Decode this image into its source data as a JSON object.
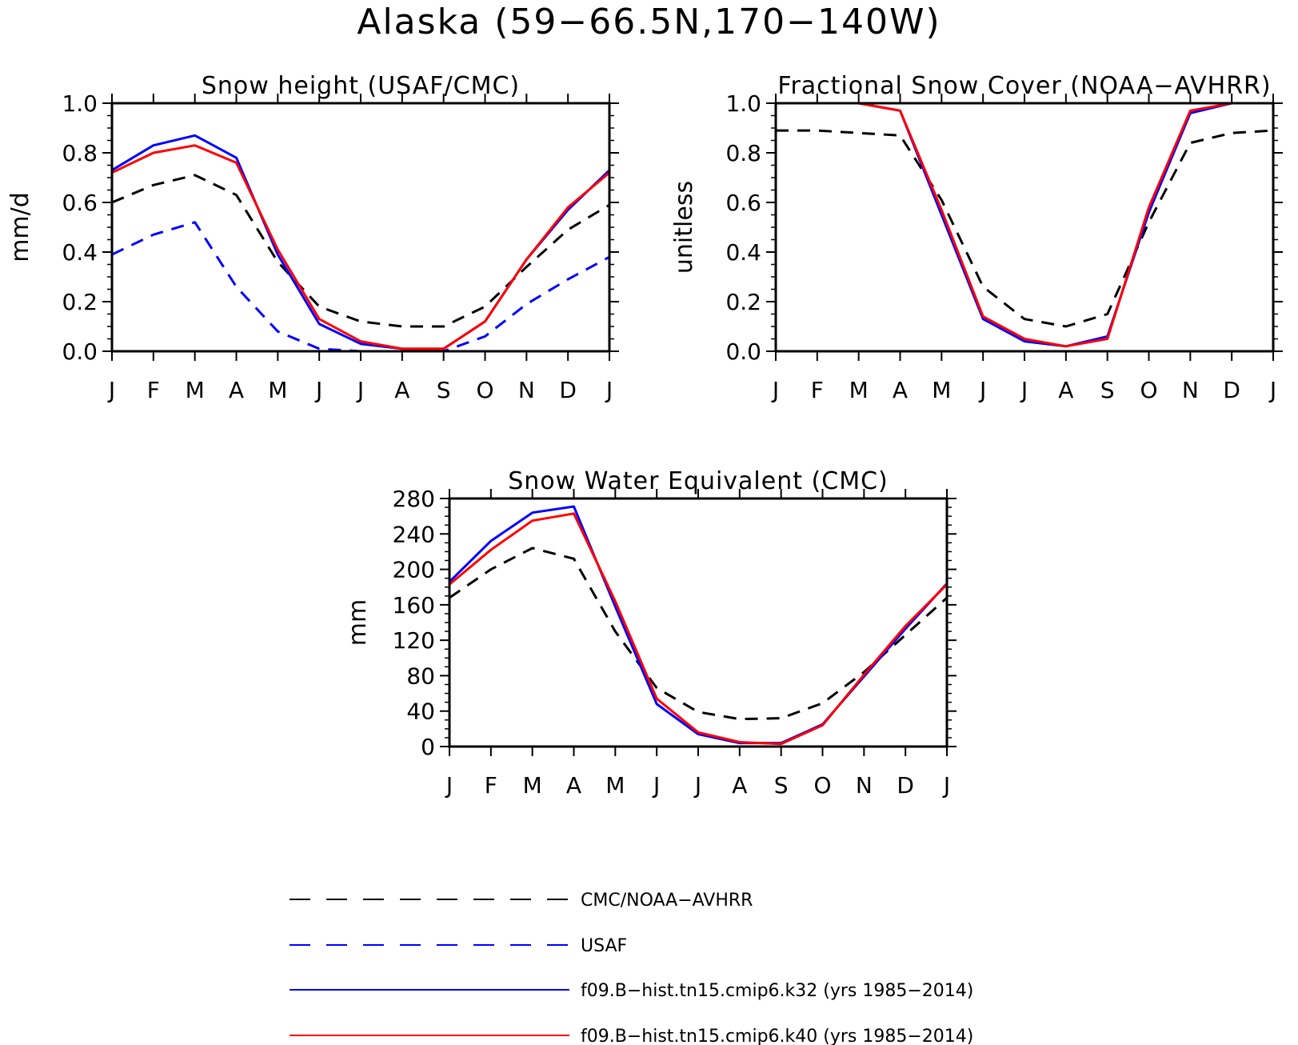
{
  "title": "Alaska (59−66.5N,170−140W)",
  "colors": {
    "obs_primary": "#000000",
    "obs_secondary": "#0000ff",
    "k32": "#0000ff",
    "k40": "#ff0000"
  },
  "legend": {
    "entries": [
      {
        "label": "CMC/NOAA−AVHRR",
        "color": "#000000",
        "style": "dashed"
      },
      {
        "label": "USAF",
        "color": "#0000ff",
        "style": "dashed"
      },
      {
        "label": "f09.B−hist.tn15.cmip6.k32 (yrs 1985−2014)",
        "color": "#0000ff",
        "style": "solid"
      },
      {
        "label": "f09.B−hist.tn15.cmip6.k40 (yrs 1985−2014)",
        "color": "#ff0000",
        "style": "solid"
      }
    ]
  },
  "chart_data": [
    {
      "type": "line",
      "title": "Snow height (USAF/CMC)",
      "ylabel": "mm/d",
      "ylim": [
        0,
        1.0
      ],
      "yticks": [
        "0.0",
        "0.2",
        "0.4",
        "0.6",
        "0.8",
        "1.0"
      ],
      "categories": [
        "J",
        "F",
        "M",
        "A",
        "M",
        "J",
        "J",
        "A",
        "S",
        "O",
        "N",
        "D",
        "J"
      ],
      "series": [
        {
          "name": "CMC/NOAA−AVHRR",
          "style": "dashed",
          "color": "#000000",
          "values": [
            0.6,
            0.67,
            0.71,
            0.63,
            0.36,
            0.18,
            0.12,
            0.1,
            0.1,
            0.18,
            0.34,
            0.49,
            0.59
          ]
        },
        {
          "name": "USAF",
          "style": "dashed",
          "color": "#0000ff",
          "values": [
            0.39,
            0.47,
            0.52,
            0.26,
            0.08,
            0.01,
            0.0,
            0.0,
            0.0,
            0.06,
            0.19,
            0.29,
            0.38
          ]
        },
        {
          "name": "f09.B−hist.tn15.cmip6.k32 (yrs 1985−2014)",
          "style": "solid",
          "color": "#0000ff",
          "values": [
            0.73,
            0.83,
            0.87,
            0.78,
            0.39,
            0.11,
            0.03,
            0.01,
            0.01,
            0.12,
            0.37,
            0.57,
            0.73
          ]
        },
        {
          "name": "f09.B−hist.tn15.cmip6.k40 (yrs 1985−2014)",
          "style": "solid",
          "color": "#ff0000",
          "values": [
            0.72,
            0.8,
            0.83,
            0.76,
            0.41,
            0.13,
            0.04,
            0.01,
            0.01,
            0.12,
            0.37,
            0.58,
            0.72
          ]
        }
      ]
    },
    {
      "type": "line",
      "title": "Fractional Snow Cover (NOAA−AVHRR)",
      "ylabel": "unitless",
      "ylim": [
        0,
        1.0
      ],
      "yticks": [
        "0.0",
        "0.2",
        "0.4",
        "0.6",
        "0.8",
        "1.0"
      ],
      "categories": [
        "J",
        "F",
        "M",
        "A",
        "M",
        "J",
        "J",
        "A",
        "S",
        "O",
        "N",
        "D",
        "J"
      ],
      "series": [
        {
          "name": "CMC/NOAA−AVHRR",
          "style": "dashed",
          "color": "#000000",
          "values": [
            0.89,
            0.89,
            0.88,
            0.87,
            0.61,
            0.26,
            0.13,
            0.1,
            0.15,
            0.52,
            0.84,
            0.88,
            0.89
          ]
        },
        {
          "name": "f09.B−hist.tn15.cmip6.k32 (yrs 1985−2014)",
          "style": "solid",
          "color": "#0000ff",
          "values": [
            1.0,
            1.0,
            1.0,
            0.97,
            0.55,
            0.13,
            0.04,
            0.02,
            0.06,
            0.56,
            0.96,
            1.0,
            1.0
          ]
        },
        {
          "name": "f09.B−hist.tn15.cmip6.k40 (yrs 1985−2014)",
          "style": "solid",
          "color": "#ff0000",
          "values": [
            1.0,
            1.0,
            1.0,
            0.97,
            0.57,
            0.14,
            0.05,
            0.02,
            0.05,
            0.58,
            0.97,
            1.0,
            1.0
          ]
        }
      ]
    },
    {
      "type": "line",
      "title": "Snow Water Equivalent (CMC)",
      "ylabel": "mm",
      "ylim": [
        0,
        280
      ],
      "yticks": [
        "0",
        "40",
        "80",
        "120",
        "160",
        "200",
        "240",
        "280"
      ],
      "categories": [
        "J",
        "F",
        "M",
        "A",
        "M",
        "J",
        "J",
        "A",
        "S",
        "O",
        "N",
        "D",
        "J"
      ],
      "series": [
        {
          "name": "CMC/NOAA−AVHRR",
          "style": "dashed",
          "color": "#000000",
          "values": [
            168,
            200,
            224,
            212,
            130,
            66,
            39,
            31,
            32,
            49,
            84,
            126,
            168
          ]
        },
        {
          "name": "f09.B−hist.tn15.cmip6.k32 (yrs 1985−2014)",
          "style": "solid",
          "color": "#0000ff",
          "values": [
            186,
            232,
            264,
            271,
            158,
            48,
            14,
            4,
            4,
            25,
            79,
            133,
            184
          ]
        },
        {
          "name": "f09.B−hist.tn15.cmip6.k40 (yrs 1985−2014)",
          "style": "solid",
          "color": "#ff0000",
          "values": [
            183,
            222,
            255,
            263,
            164,
            54,
            16,
            5,
            3,
            24,
            81,
            136,
            183
          ]
        }
      ]
    }
  ]
}
